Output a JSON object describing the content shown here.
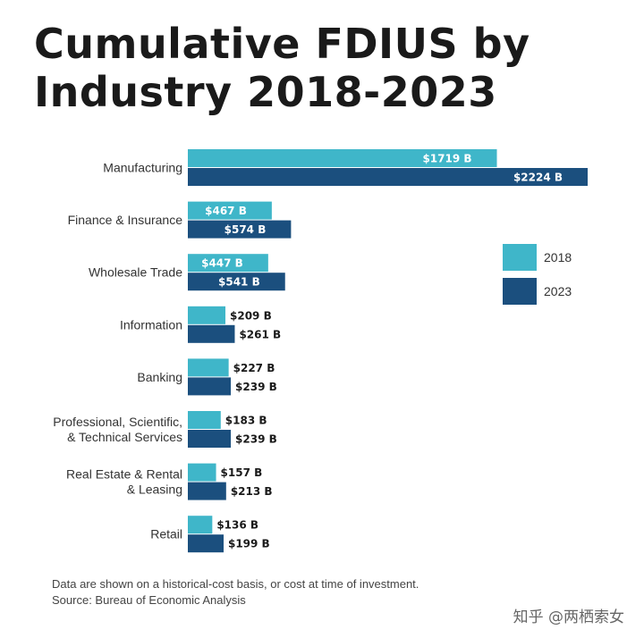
{
  "title": "Cumulative FDIUS by Industry 2018-2023",
  "footer": {
    "note": "Data are shown on a historical-cost basis, or cost at time of investment.",
    "source": "Source: Bureau of Economic Analysis"
  },
  "watermark": "知乎 @两栖索女",
  "colors": {
    "2018": "#3fb6c9",
    "2023": "#1b4f7e"
  },
  "chart_data": {
    "type": "bar",
    "orientation": "horizontal",
    "title": "Cumulative FDIUS by Industry 2018-2023",
    "categories": [
      [
        "Manufacturing"
      ],
      [
        "Finance & Insurance"
      ],
      [
        "Wholesale Trade"
      ],
      [
        "Information"
      ],
      [
        "Banking"
      ],
      [
        "Professional, Scientific,",
        "& Technical Services"
      ],
      [
        "Real Estate & Rental",
        "& Leasing"
      ],
      [
        "Retail"
      ]
    ],
    "series": [
      {
        "name": "2018",
        "values": [
          1719,
          467,
          447,
          209,
          227,
          183,
          157,
          136
        ],
        "labels": [
          "$1719 B",
          "$467 B",
          "$447 B",
          "$209 B",
          "$227 B",
          "$183 B",
          "$157 B",
          "$136 B"
        ]
      },
      {
        "name": "2023",
        "values": [
          2224,
          574,
          541,
          261,
          239,
          239,
          213,
          199
        ],
        "labels": [
          "$2224 B",
          "$574 B",
          "$541 B",
          "$261 B",
          "$239 B",
          "$239 B",
          "$213 B",
          "$199 B"
        ]
      }
    ],
    "legend_position": "right",
    "grid": false
  }
}
